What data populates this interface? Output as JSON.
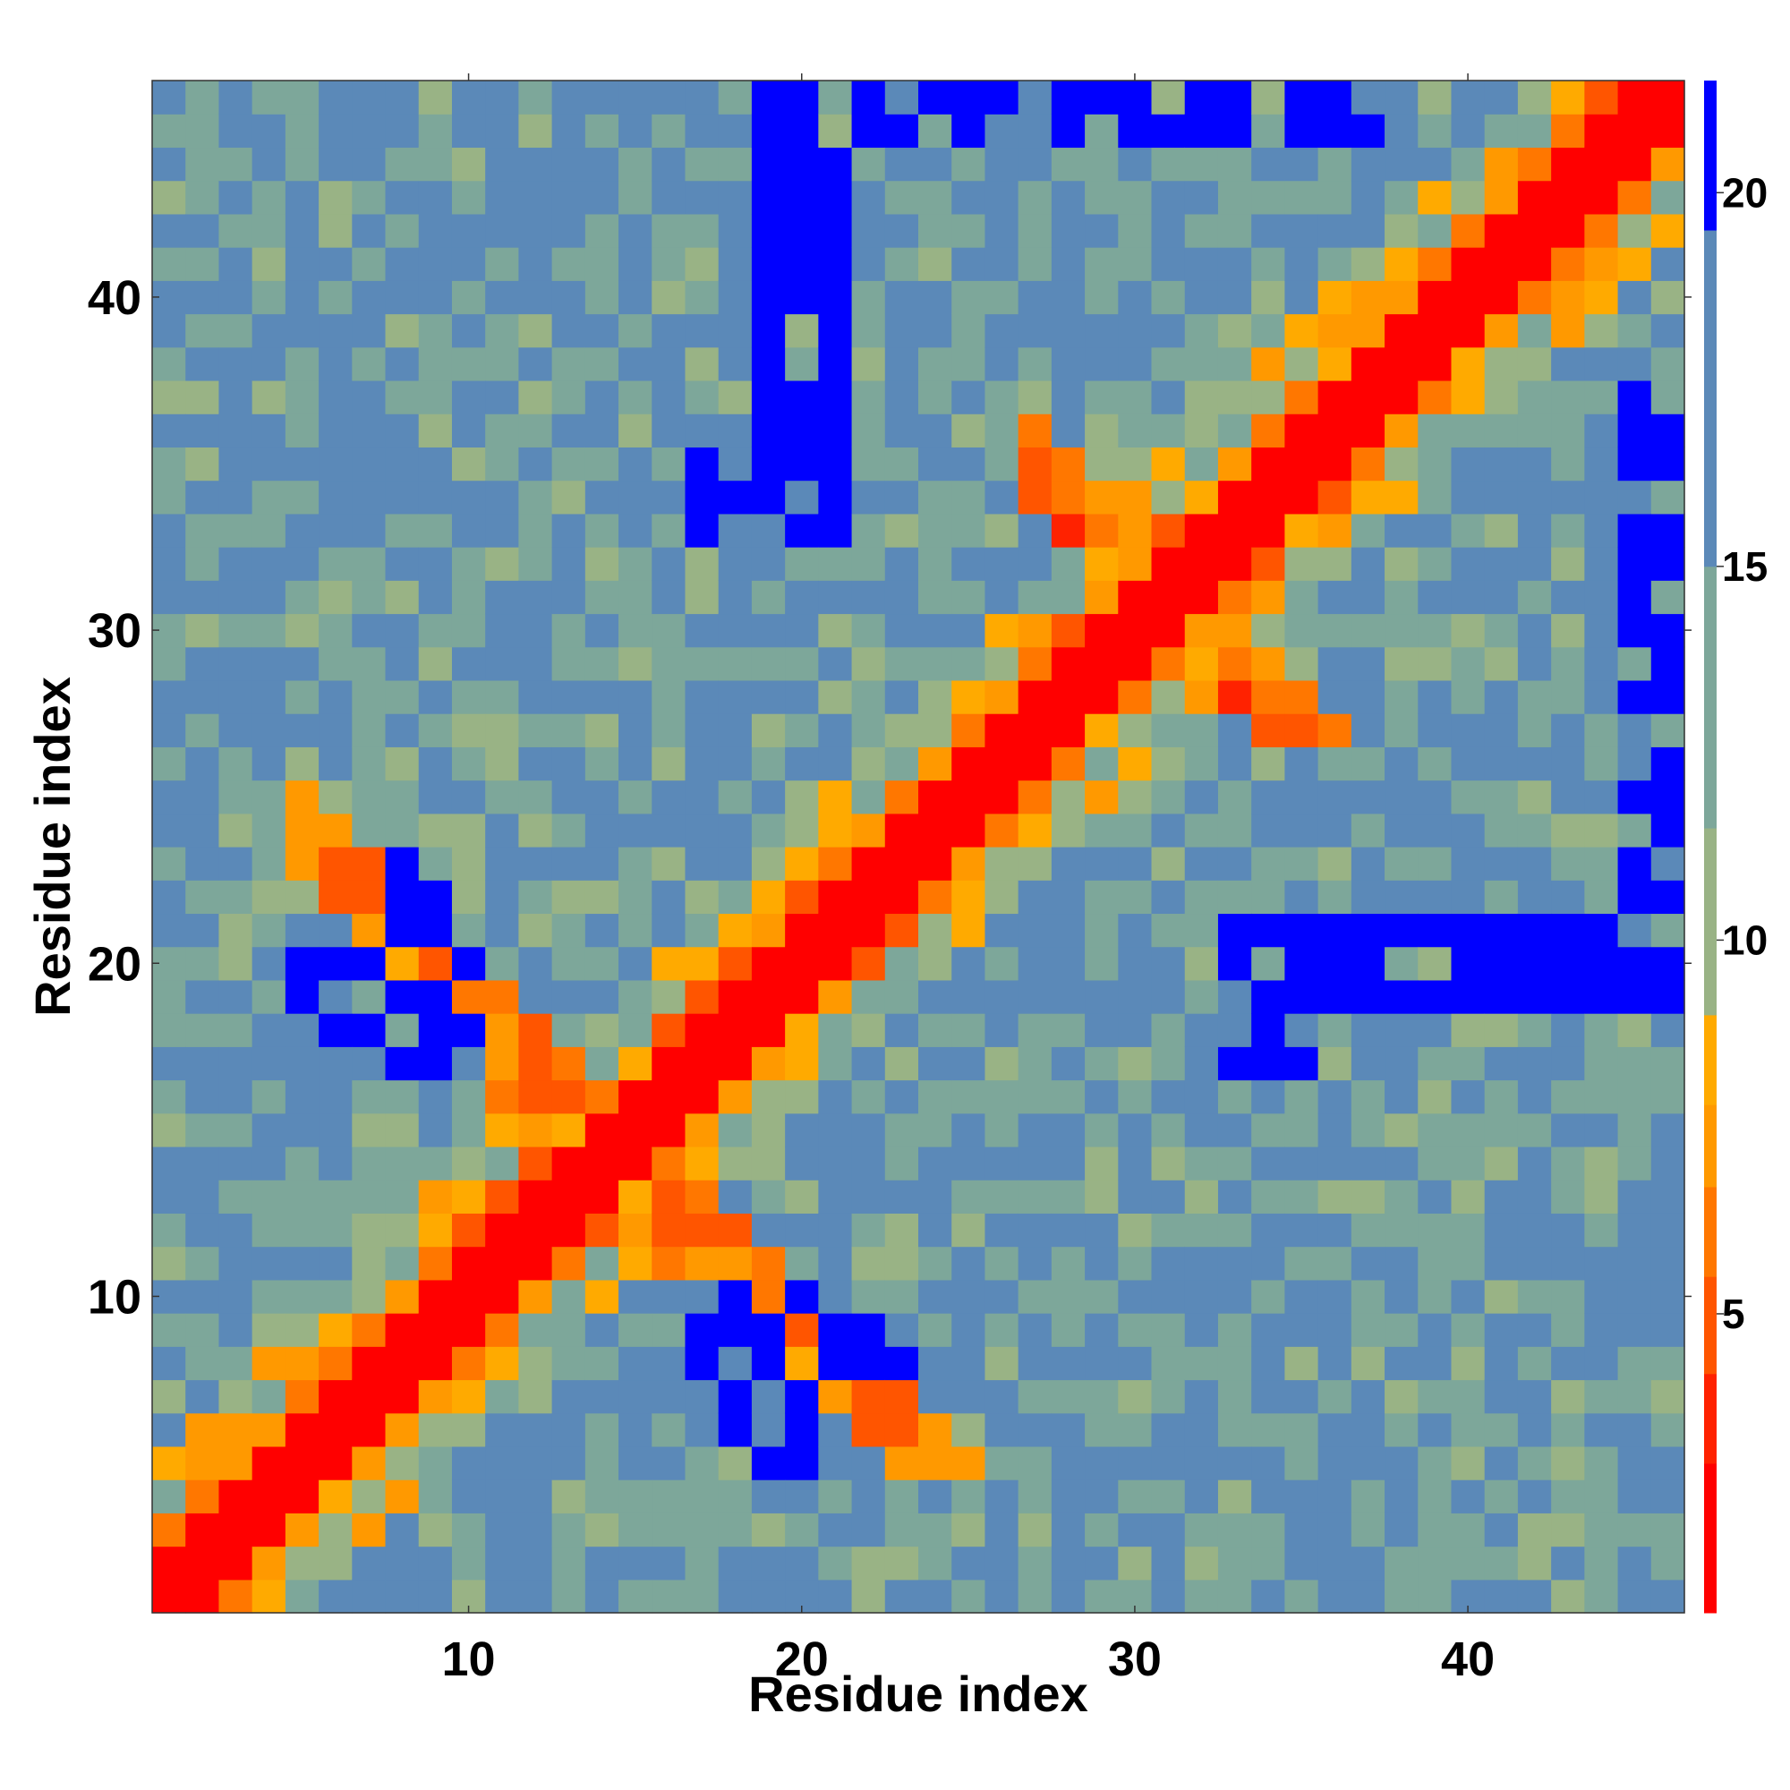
{
  "chart_data": {
    "type": "heatmap",
    "title": "",
    "xlabel": "Residue index",
    "ylabel": "Residue index",
    "n": 46,
    "xticks": [
      10,
      20,
      30,
      40
    ],
    "yticks": [
      10,
      20,
      30,
      40
    ],
    "colorbar": {
      "ticks": [
        5,
        10,
        15,
        20
      ],
      "range": [
        1,
        21.5
      ],
      "colors": [
        "#ff0000",
        "#ff2200",
        "#ff5500",
        "#ff7700",
        "#ff9900",
        "#ffaa00",
        "#99b385",
        "#7da79a",
        "#5b89b8",
        "#0000ff"
      ],
      "stops": [
        3.0,
        4.2,
        5.5,
        6.7,
        7.8,
        9.0,
        11.5,
        15.0,
        19.5
      ]
    },
    "features": {
      "diagonal_band_halfwidth": 1.5,
      "dense_sheet_contacts": [
        [
          5,
          24
        ],
        [
          11,
          16
        ],
        [
          27,
          35
        ]
      ],
      "far_blocks": [
        [
          8,
          9,
          17,
          23
        ],
        [
          18,
          20,
          5,
          10
        ],
        [
          33,
          35,
          17,
          21
        ],
        [
          45,
          46,
          20,
          37
        ],
        [
          19,
          21,
          33,
          46
        ]
      ]
    }
  }
}
